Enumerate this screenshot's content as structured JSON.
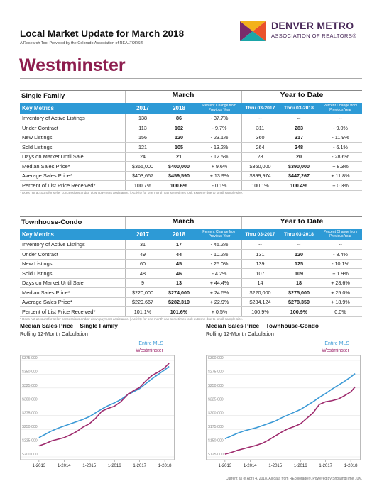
{
  "header": {
    "title": "Local Market Update for March 2018",
    "subtitle": "A Research Tool Provided by the Colorado Association of REALTORS®",
    "logo_line1": "DENVER METRO",
    "logo_line2": "ASSOCIATION OF REALTORS®",
    "area": "Westminster"
  },
  "tables": [
    {
      "section": "Single Family",
      "groups": [
        "March",
        "Year to Date"
      ],
      "columns": [
        "Key Metrics",
        "2017",
        "2018",
        "Percent Change from Previous Year",
        "Thru 03-2017",
        "Thru 03-2018",
        "Percent Change from Previous Year"
      ],
      "rows": [
        [
          "Inventory of Active Listings",
          "138",
          "86",
          "- 37.7%",
          "--",
          "--",
          "--"
        ],
        [
          "Under Contract",
          "113",
          "102",
          "- 9.7%",
          "311",
          "283",
          "- 9.0%"
        ],
        [
          "New Listings",
          "156",
          "120",
          "- 23.1%",
          "360",
          "317",
          "- 11.9%"
        ],
        [
          "Sold Listings",
          "121",
          "105",
          "- 13.2%",
          "264",
          "248",
          "- 6.1%"
        ],
        [
          "Days on Market Until Sale",
          "24",
          "21",
          "- 12.5%",
          "28",
          "20",
          "- 28.6%"
        ],
        [
          "Median Sales Price*",
          "$365,000",
          "$400,000",
          "+ 9.6%",
          "$360,000",
          "$390,000",
          "+ 8.3%"
        ],
        [
          "Average Sales Price*",
          "$403,667",
          "$459,590",
          "+ 13.9%",
          "$399,974",
          "$447,267",
          "+ 11.8%"
        ],
        [
          "Percent of List Price Received*",
          "100.7%",
          "100.6%",
          "- 0.1%",
          "100.1%",
          "100.4%",
          "+ 0.3%"
        ]
      ],
      "footnote": "* Does not account for seller concessions and/or down payment assistance.  |  Activity for one month can sometimes look extreme due to small sample size."
    },
    {
      "section": "Townhouse-Condo",
      "groups": [
        "March",
        "Year to Date"
      ],
      "columns": [
        "Key Metrics",
        "2017",
        "2018",
        "Percent Change from Previous Year",
        "Thru 03-2017",
        "Thru 03-2018",
        "Percent Change from Previous Year"
      ],
      "rows": [
        [
          "Inventory of Active Listings",
          "31",
          "17",
          "- 45.2%",
          "--",
          "--",
          "--"
        ],
        [
          "Under Contract",
          "49",
          "44",
          "- 10.2%",
          "131",
          "120",
          "- 8.4%"
        ],
        [
          "New Listings",
          "60",
          "45",
          "- 25.0%",
          "139",
          "125",
          "- 10.1%"
        ],
        [
          "Sold Listings",
          "48",
          "46",
          "- 4.2%",
          "107",
          "109",
          "+ 1.9%"
        ],
        [
          "Days on Market Until Sale",
          "9",
          "13",
          "+ 44.4%",
          "14",
          "18",
          "+ 28.6%"
        ],
        [
          "Median Sales Price*",
          "$220,000",
          "$274,000",
          "+ 24.5%",
          "$220,000",
          "$275,000",
          "+ 25.0%"
        ],
        [
          "Average Sales Price*",
          "$229,667",
          "$282,310",
          "+ 22.9%",
          "$234,124",
          "$278,350",
          "+ 18.9%"
        ],
        [
          "Percent of List Price Received*",
          "101.1%",
          "101.6%",
          "+ 0.5%",
          "100.9%",
          "100.9%",
          "0.0%"
        ]
      ],
      "footnote": "* Does not account for seller concessions and/or down payment assistance.  |  Activity for one month can sometimes look extreme due to small sample size."
    }
  ],
  "chart_data": [
    {
      "type": "line",
      "title": "Median Sales Price – Single Family",
      "subtitle": "Rolling 12-Month Calculation",
      "legend": "top-right",
      "grid": true,
      "x": [
        2013,
        2013.25,
        2013.5,
        2013.75,
        2014,
        2014.25,
        2014.5,
        2014.75,
        2015,
        2015.25,
        2015.5,
        2015.75,
        2016,
        2016.25,
        2016.5,
        2016.75,
        2017,
        2017.25,
        2017.5,
        2017.75,
        2018,
        2018.17
      ],
      "xlim": [
        2012.92,
        2018.25
      ],
      "xticks": [
        {
          "value": 2013,
          "label": "1-2013"
        },
        {
          "value": 2014,
          "label": "1-2014"
        },
        {
          "value": 2015,
          "label": "1-2015"
        },
        {
          "value": 2016,
          "label": "1-2016"
        },
        {
          "value": 2017,
          "label": "1-2017"
        },
        {
          "value": 2018,
          "label": "1-2018"
        }
      ],
      "ylim": [
        200000,
        375000
      ],
      "yticks": [
        {
          "value": 200000,
          "label": "$200,000"
        },
        {
          "value": 225000,
          "label": "$225,000"
        },
        {
          "value": 250000,
          "label": "$250,000"
        },
        {
          "value": 275000,
          "label": "$275,000"
        },
        {
          "value": 300000,
          "label": "$300,000"
        },
        {
          "value": 325000,
          "label": "$325,000"
        },
        {
          "value": 350000,
          "label": "$350,000"
        },
        {
          "value": 375000,
          "label": "$375,000"
        }
      ],
      "series": [
        {
          "name": "Entire MLS",
          "color": "#3c9ad6",
          "values": [
            235000,
            241000,
            247000,
            252000,
            256000,
            260000,
            264000,
            268000,
            273000,
            280000,
            287000,
            293000,
            298000,
            304000,
            312000,
            318000,
            324000,
            333000,
            342000,
            350000,
            358000,
            364000
          ]
        },
        {
          "name": "Westminster",
          "color": "#9e2a6d",
          "values": [
            220000,
            224000,
            229000,
            232000,
            235000,
            240000,
            246000,
            254000,
            260000,
            270000,
            283000,
            288000,
            292000,
            300000,
            312000,
            320000,
            326000,
            338000,
            348000,
            354000,
            362000,
            370000
          ]
        }
      ]
    },
    {
      "type": "line",
      "title": "Median Sales Price – Townhouse-Condo",
      "subtitle": "Rolling 12-Month Calculation",
      "legend": "top-right",
      "grid": true,
      "x": [
        2013,
        2013.25,
        2013.5,
        2013.75,
        2014,
        2014.25,
        2014.5,
        2014.75,
        2015,
        2015.25,
        2015.5,
        2015.75,
        2016,
        2016.25,
        2016.5,
        2016.75,
        2017,
        2017.25,
        2017.5,
        2017.75,
        2018,
        2018.17
      ],
      "xlim": [
        2012.92,
        2018.25
      ],
      "xticks": [
        {
          "value": 2013,
          "label": "1-2013"
        },
        {
          "value": 2014,
          "label": "1-2014"
        },
        {
          "value": 2015,
          "label": "1-2015"
        },
        {
          "value": 2016,
          "label": "1-2016"
        },
        {
          "value": 2017,
          "label": "1-2017"
        },
        {
          "value": 2018,
          "label": "1-2018"
        }
      ],
      "ylim": [
        125000,
        300000
      ],
      "yticks": [
        {
          "value": 125000,
          "label": "$125,000"
        },
        {
          "value": 150000,
          "label": "$150,000"
        },
        {
          "value": 175000,
          "label": "$175,000"
        },
        {
          "value": 200000,
          "label": "$200,000"
        },
        {
          "value": 225000,
          "label": "$225,000"
        },
        {
          "value": 250000,
          "label": "$250,000"
        },
        {
          "value": 275000,
          "label": "$275,000"
        },
        {
          "value": 300000,
          "label": "$300,000"
        }
      ],
      "series": [
        {
          "name": "Entire MLS",
          "color": "#3c9ad6",
          "values": [
            158000,
            163000,
            168000,
            172000,
            175000,
            178000,
            182000,
            186000,
            190000,
            196000,
            201000,
            206000,
            211000,
            218000,
            225000,
            233000,
            240000,
            248000,
            255000,
            262000,
            270000,
            276000
          ]
        },
        {
          "name": "Westminster",
          "color": "#9e2a6d",
          "values": [
            130000,
            133000,
            137000,
            140000,
            143000,
            146000,
            150000,
            156000,
            163000,
            170000,
            176000,
            180000,
            185000,
            195000,
            205000,
            220000,
            225000,
            227000,
            230000,
            236000,
            243000,
            252000
          ]
        }
      ]
    }
  ],
  "footer": "Current as of April 4, 2018. All data from REcolorado®. Powered by ShowingTime 10K."
}
